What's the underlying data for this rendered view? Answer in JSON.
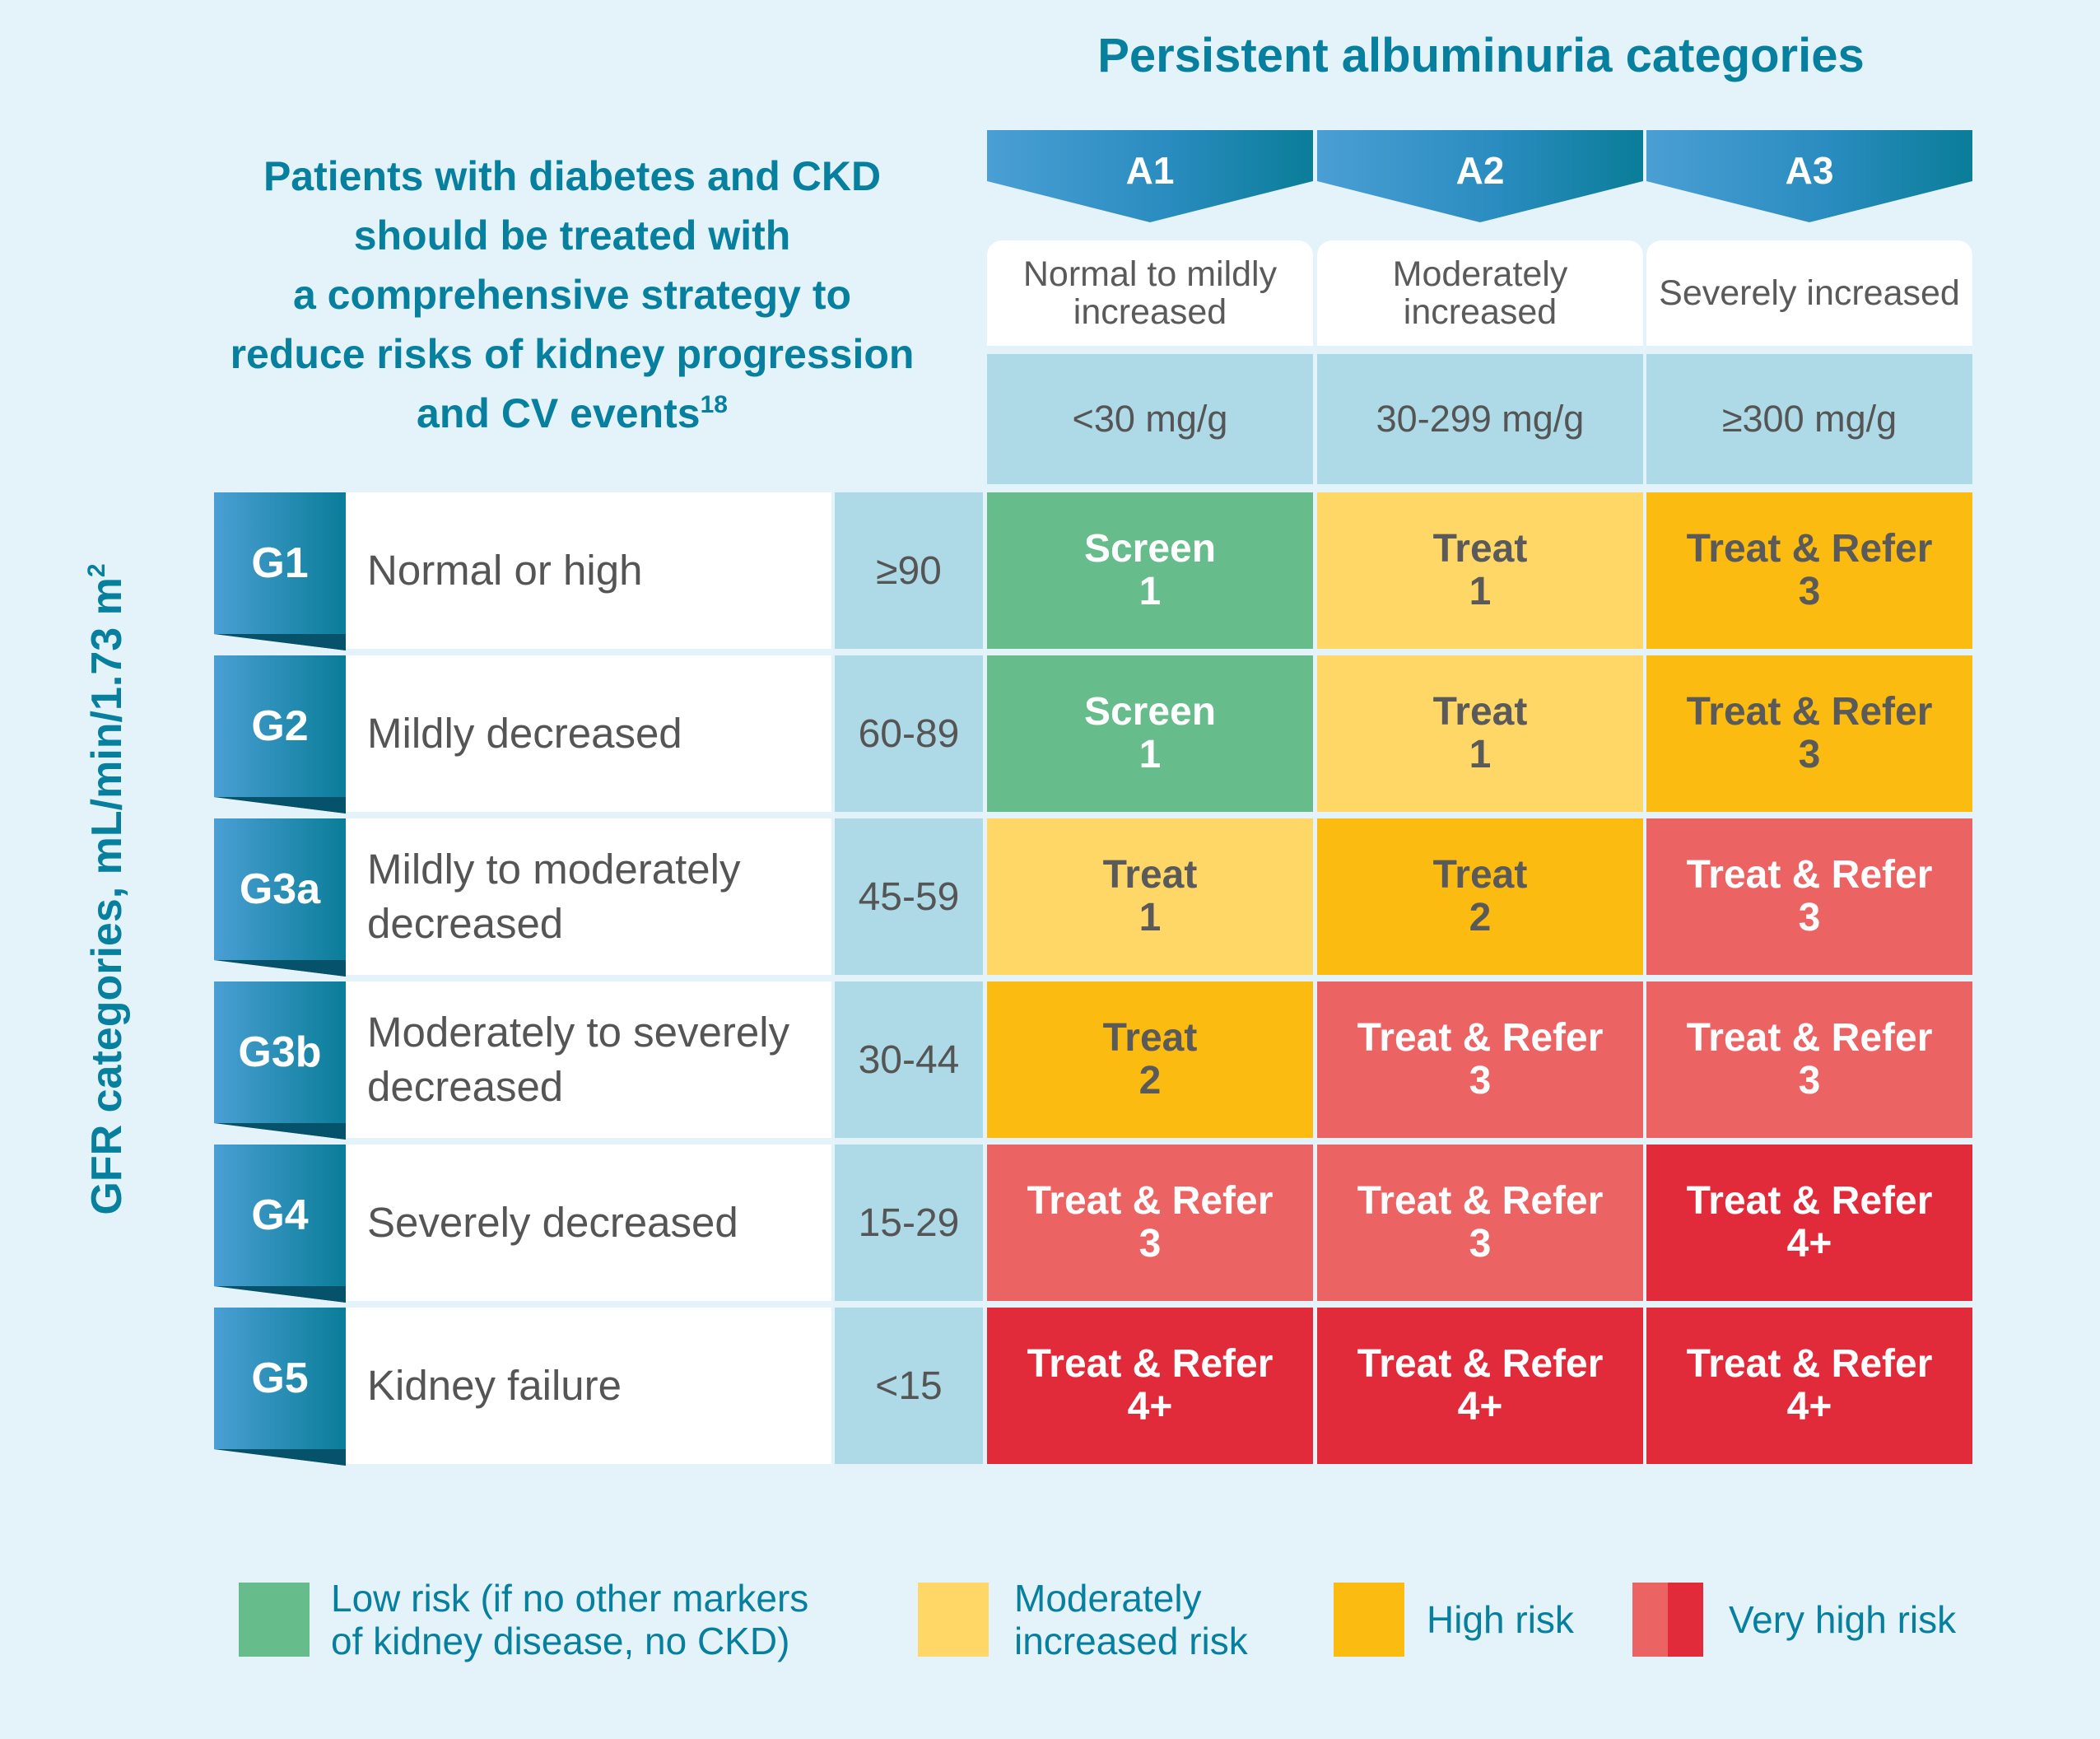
{
  "header": {
    "albuminuria_title": "Persistent albuminuria categories",
    "intro_lines": [
      "Patients with diabetes and CKD",
      "should be treated with",
      "a comprehensive strategy to",
      "reduce risks of kidney progression",
      "and CV events"
    ],
    "intro_reference": "18"
  },
  "axis": {
    "gfr_label": "GFR categories, mL/min/1.73 m",
    "gfr_label_superscript": "2"
  },
  "columns": [
    {
      "code": "A1",
      "description": "Normal to mildly increased",
      "range": "<30 mg/g"
    },
    {
      "code": "A2",
      "description": "Moderately increased",
      "range": "30-299 mg/g"
    },
    {
      "code": "A3",
      "description": "Severely increased",
      "range": "≥300 mg/g"
    }
  ],
  "rows": [
    {
      "code": "G1",
      "description": "Normal or high",
      "range": "≥90",
      "cells": [
        {
          "action": "Screen",
          "frequency": "1",
          "risk": "low"
        },
        {
          "action": "Treat",
          "frequency": "1",
          "risk": "moderate"
        },
        {
          "action": "Treat & Refer",
          "frequency": "3",
          "risk": "high"
        }
      ]
    },
    {
      "code": "G2",
      "description": "Mildly decreased",
      "range": "60-89",
      "cells": [
        {
          "action": "Screen",
          "frequency": "1",
          "risk": "low"
        },
        {
          "action": "Treat",
          "frequency": "1",
          "risk": "moderate"
        },
        {
          "action": "Treat & Refer",
          "frequency": "3",
          "risk": "high"
        }
      ]
    },
    {
      "code": "G3a",
      "description": "Mildly to moderately decreased",
      "range": "45-59",
      "cells": [
        {
          "action": "Treat",
          "frequency": "1",
          "risk": "moderate"
        },
        {
          "action": "Treat",
          "frequency": "2",
          "risk": "high"
        },
        {
          "action": "Treat & Refer",
          "frequency": "3",
          "risk": "very-high-1"
        }
      ]
    },
    {
      "code": "G3b",
      "description": "Moderately to severely decreased",
      "range": "30-44",
      "cells": [
        {
          "action": "Treat",
          "frequency": "2",
          "risk": "high"
        },
        {
          "action": "Treat & Refer",
          "frequency": "3",
          "risk": "very-high-1"
        },
        {
          "action": "Treat & Refer",
          "frequency": "3",
          "risk": "very-high-1"
        }
      ]
    },
    {
      "code": "G4",
      "description": "Severely decreased",
      "range": "15-29",
      "cells": [
        {
          "action": "Treat & Refer",
          "frequency": "3",
          "risk": "very-high-1"
        },
        {
          "action": "Treat & Refer",
          "frequency": "3",
          "risk": "very-high-1"
        },
        {
          "action": "Treat & Refer",
          "frequency": "4+",
          "risk": "very-high-2"
        }
      ]
    },
    {
      "code": "G5",
      "description": "Kidney failure",
      "range": "<15",
      "cells": [
        {
          "action": "Treat & Refer",
          "frequency": "4+",
          "risk": "very-high-2"
        },
        {
          "action": "Treat & Refer",
          "frequency": "4+",
          "risk": "very-high-2"
        },
        {
          "action": "Treat & Refer",
          "frequency": "4+",
          "risk": "very-high-2"
        }
      ]
    }
  ],
  "legend": [
    {
      "label_lines": [
        "Low risk (if no other markers",
        "of kidney disease, no CKD)"
      ],
      "colors": [
        "#66bc8a"
      ]
    },
    {
      "label_lines": [
        "Moderately",
        "increased risk"
      ],
      "colors": [
        "#fed767"
      ]
    },
    {
      "label_lines": [
        "High risk"
      ],
      "colors": [
        "#fbbb10"
      ]
    },
    {
      "label_lines": [
        "Very high risk"
      ],
      "colors": [
        "#eb6363",
        "#e12a3a"
      ]
    }
  ],
  "colors": {
    "background": "#e4f3f9",
    "teal": "#077f9e",
    "banner_light": "#4a9fd4",
    "banner_dark": "#0a7d98",
    "range_fill": "#aed9e6",
    "low_risk": "#66bc8a",
    "moderate_risk": "#fed767",
    "high_risk": "#fbbb10",
    "very_high_risk_1": "#eb6363",
    "very_high_risk_2": "#e12a3a"
  }
}
